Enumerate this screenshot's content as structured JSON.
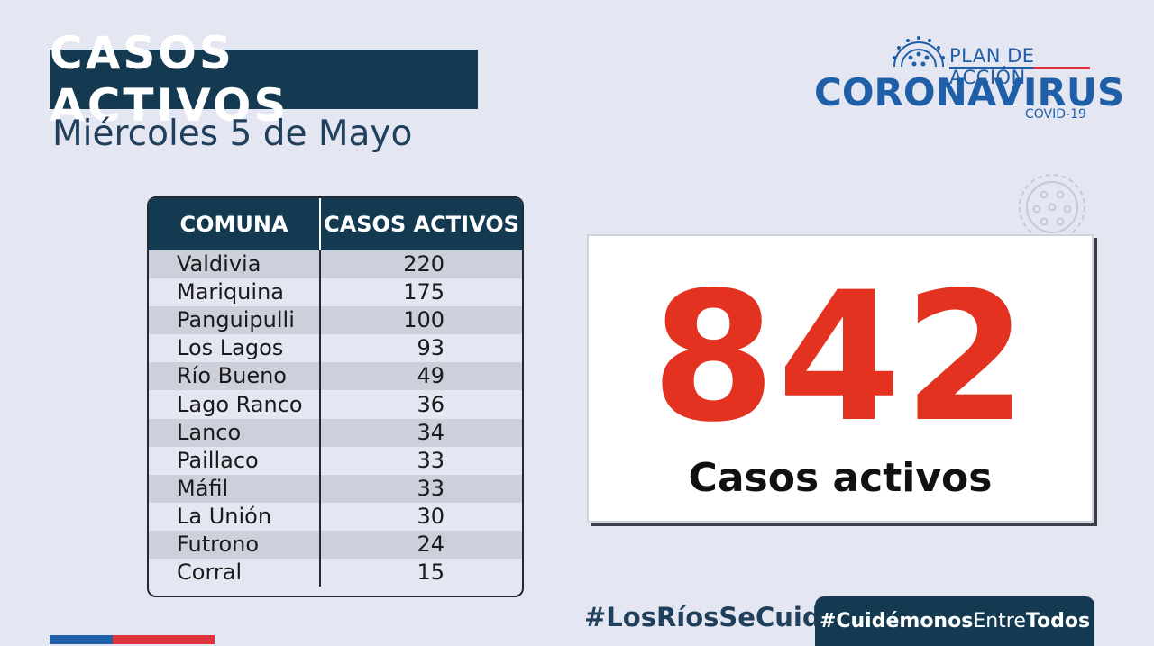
{
  "header": {
    "title": "CASOS ACTIVOS",
    "date": "Miércoles 5 de Mayo"
  },
  "logo": {
    "plan": "PLAN DE ACCIÓN",
    "name": "CORONAVIRUS",
    "sub": "COVID-19"
  },
  "table": {
    "headers": [
      "COMUNA",
      "CASOS ACTIVOS"
    ],
    "rows": [
      {
        "comuna": "Valdivia",
        "casos": "220"
      },
      {
        "comuna": "Mariquina",
        "casos": "175"
      },
      {
        "comuna": "Panguipulli",
        "casos": "100"
      },
      {
        "comuna": "Los Lagos",
        "casos": "93"
      },
      {
        "comuna": "Río Bueno",
        "casos": "49"
      },
      {
        "comuna": "Lago Ranco",
        "casos": "36"
      },
      {
        "comuna": "Lanco",
        "casos": "34"
      },
      {
        "comuna": "Paillaco",
        "casos": "33"
      },
      {
        "comuna": "Máfil",
        "casos": "33"
      },
      {
        "comuna": "La Unión",
        "casos": "30"
      },
      {
        "comuna": "Futrono",
        "casos": "24"
      },
      {
        "comuna": "Corral",
        "casos": "15"
      }
    ]
  },
  "total": {
    "value": "842",
    "label": "Casos activos"
  },
  "footer": {
    "hashtag1": "#LosRíosSeCuida",
    "hashtag2_a": "#Cuidémonos",
    "hashtag2_b": "Entre",
    "hashtag2_c": "Todos"
  },
  "colors": {
    "navy": "#143a52",
    "accent_red": "#e3321f",
    "brand_blue": "#1f5fa8",
    "background": "#e4e6f2"
  }
}
